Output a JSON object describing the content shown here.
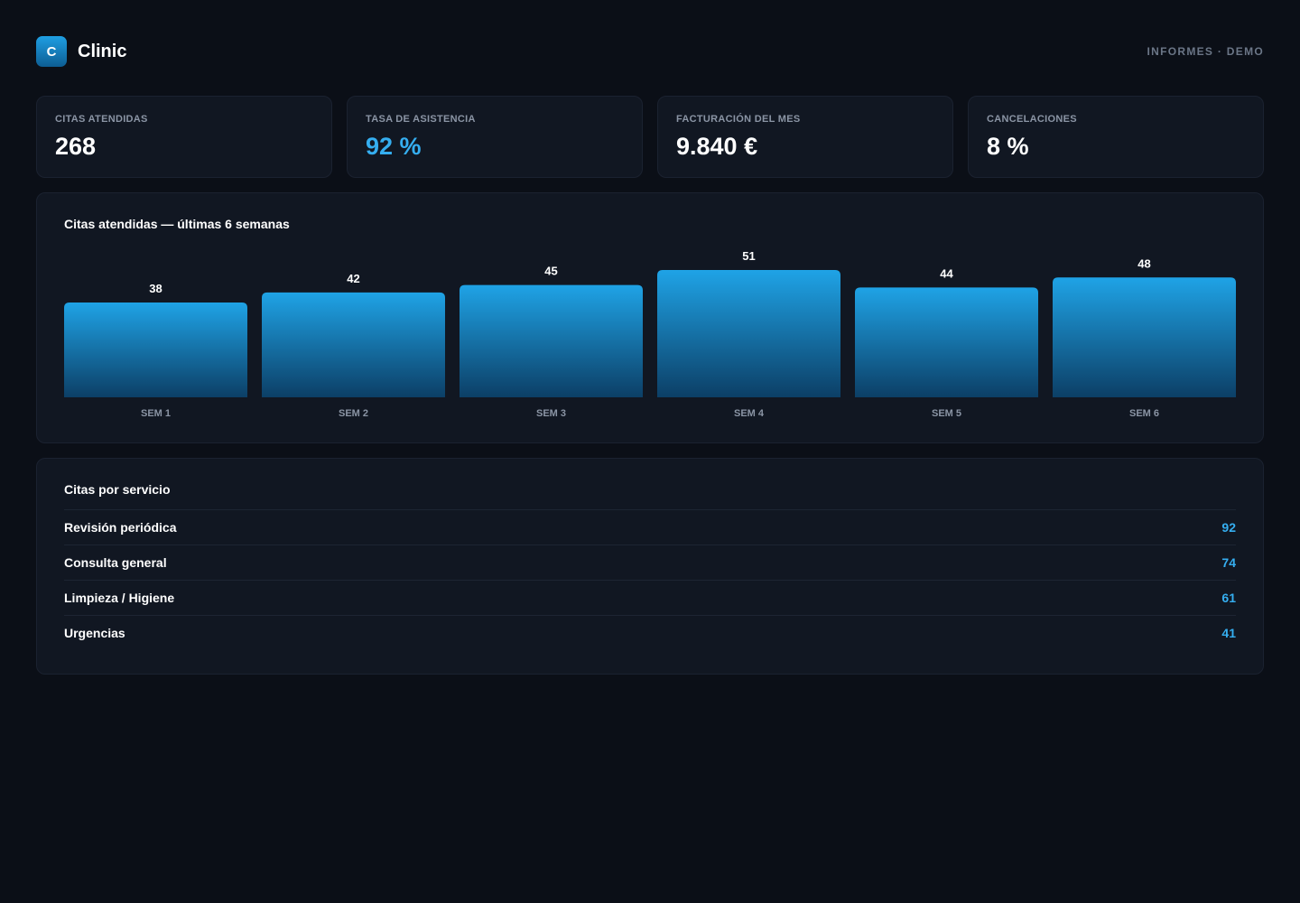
{
  "app": {
    "logo_letter": "C",
    "name": "Clinic",
    "meta": "INFORMES · DEMO"
  },
  "kpis": [
    {
      "label": "CITAS ATENDIDAS",
      "value": "268",
      "accent": false
    },
    {
      "label": "TASA DE ASISTENCIA",
      "value": "92 %",
      "accent": true
    },
    {
      "label": "FACTURACIÓN DEL MES",
      "value": "9.840 €",
      "accent": false
    },
    {
      "label": "CANCELACIONES",
      "value": "8 %",
      "accent": false
    }
  ],
  "chart_data": {
    "type": "bar",
    "title": "Citas atendidas — últimas 6 semanas",
    "categories": [
      "SEM 1",
      "SEM 2",
      "SEM 3",
      "SEM 4",
      "SEM 5",
      "SEM 6"
    ],
    "values": [
      38,
      42,
      45,
      51,
      44,
      48
    ],
    "xlabel": "",
    "ylabel": "",
    "ylim": [
      0,
      51
    ],
    "grid": false,
    "bar_color_top": "#1fa3e6",
    "bar_color_bottom": "#0c3f66"
  },
  "services": {
    "title": "Citas por servicio",
    "rows": [
      {
        "name": "Revisión periódica",
        "count": "92"
      },
      {
        "name": "Consulta general",
        "count": "74"
      },
      {
        "name": "Limpieza / Higiene",
        "count": "61"
      },
      {
        "name": "Urgencias",
        "count": "41"
      }
    ]
  },
  "colors": {
    "background": "#0b0f17",
    "card": "#111722",
    "accent": "#35aef0"
  }
}
